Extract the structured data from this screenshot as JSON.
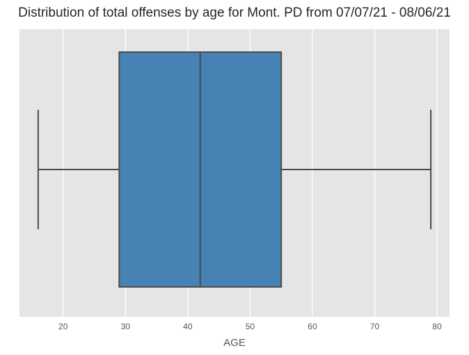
{
  "chart_data": {
    "type": "box",
    "title": "Distribution of total offenses by age for Mont. PD from 07/07/21 - 08/06/21",
    "xlabel": "AGE",
    "ylabel": "",
    "xlim": [
      13,
      82
    ],
    "xticks": [
      20,
      30,
      40,
      50,
      60,
      70,
      80
    ],
    "grid": true,
    "orientation": "horizontal",
    "stats": {
      "min": 16,
      "q1": 29,
      "median": 42,
      "q3": 55,
      "max": 79
    },
    "colors": {
      "box_fill": "#4682b4",
      "box_edge": "#4a4a4a",
      "background": "#e5e5e5",
      "grid": "#ffffff"
    }
  }
}
